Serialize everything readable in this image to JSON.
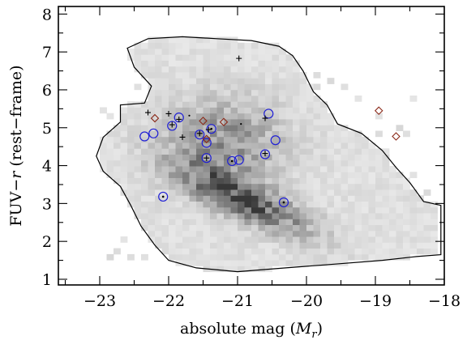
{
  "chart_data": {
    "type": "scatter",
    "title": "",
    "xlabel": "absolute mag (M_r)",
    "xlabel_parts": {
      "text": "absolute mag (",
      "symbol": "M",
      "subscript": "r",
      "close": ")"
    },
    "ylabel": "FUV−r (rest−frame)",
    "ylabel_parts": {
      "prefix": "FUV−",
      "symbol": "r",
      "suffix": " (rest−frame)"
    },
    "xlim": [
      -23.6,
      -18.0
    ],
    "ylim": [
      0.85,
      8.2
    ],
    "x_ticks": [
      -23,
      -22,
      -21,
      -20,
      -19,
      -18
    ],
    "x_tick_labels": [
      "−23",
      "−22",
      "−21",
      "−20",
      "−19",
      "−18"
    ],
    "y_ticks": [
      1,
      2,
      3,
      4,
      5,
      6,
      7,
      8
    ],
    "y_tick_labels": [
      "1",
      "2",
      "3",
      "4",
      "5",
      "6",
      "7",
      "8"
    ],
    "grid": false,
    "background_density": {
      "description_type": "2d-histogram",
      "colormap": "grayscale",
      "outline_contour": [
        [
          -22.6,
          7.1
        ],
        [
          -22.3,
          7.35
        ],
        [
          -21.8,
          7.4
        ],
        [
          -21.3,
          7.35
        ],
        [
          -20.8,
          7.3
        ],
        [
          -20.4,
          7.15
        ],
        [
          -20.2,
          6.9
        ],
        [
          -20.05,
          6.5
        ],
        [
          -19.9,
          5.95
        ],
        [
          -19.7,
          5.6
        ],
        [
          -19.55,
          5.1
        ],
        [
          -19.2,
          4.85
        ],
        [
          -18.9,
          4.4
        ],
        [
          -18.7,
          3.95
        ],
        [
          -18.5,
          3.55
        ],
        [
          -18.3,
          3.05
        ],
        [
          -18.05,
          2.95
        ],
        [
          -18.05,
          1.65
        ],
        [
          -18.4,
          1.6
        ],
        [
          -18.9,
          1.5
        ],
        [
          -19.6,
          1.4
        ],
        [
          -20.3,
          1.3
        ],
        [
          -21.0,
          1.2
        ],
        [
          -21.6,
          1.3
        ],
        [
          -22.0,
          1.5
        ],
        [
          -22.2,
          1.9
        ],
        [
          -22.4,
          2.4
        ],
        [
          -22.55,
          2.95
        ],
        [
          -22.7,
          3.45
        ],
        [
          -22.95,
          3.85
        ],
        [
          -23.05,
          4.25
        ],
        [
          -22.95,
          4.75
        ],
        [
          -22.7,
          5.15
        ],
        [
          -22.7,
          5.6
        ],
        [
          -22.35,
          5.65
        ],
        [
          -22.25,
          6.1
        ],
        [
          -22.5,
          6.6
        ],
        [
          -22.6,
          7.1
        ]
      ],
      "high_density_region": [
        [
          -21.5,
          2.0
        ],
        [
          -20.2,
          3.6
        ]
      ]
    },
    "series": [
      {
        "marker": "open-circle",
        "color": "#1f1fd6",
        "points": [
          [
            -22.35,
            4.77
          ],
          [
            -22.22,
            4.85
          ],
          [
            -21.95,
            5.05
          ],
          [
            -21.85,
            5.27
          ],
          [
            -21.55,
            4.82
          ],
          [
            -21.45,
            4.6
          ],
          [
            -21.38,
            4.97
          ],
          [
            -21.45,
            4.2
          ],
          [
            -21.08,
            4.12
          ],
          [
            -20.98,
            4.15
          ],
          [
            -20.55,
            5.37
          ],
          [
            -20.6,
            4.3
          ],
          [
            -20.45,
            4.67
          ],
          [
            -20.33,
            3.03
          ],
          [
            -22.08,
            3.18
          ]
        ],
        "inner_dots": [
          [
            -22.08,
            3.18
          ],
          [
            -21.38,
            4.97
          ],
          [
            -21.08,
            4.12
          ],
          [
            -20.33,
            3.03
          ]
        ]
      },
      {
        "marker": "open-diamond",
        "color": "#8b2a1a",
        "points": [
          [
            -22.2,
            5.25
          ],
          [
            -21.5,
            5.18
          ],
          [
            -21.2,
            5.15
          ],
          [
            -21.45,
            4.7
          ],
          [
            -18.95,
            5.45
          ],
          [
            -18.7,
            4.77
          ]
        ]
      },
      {
        "marker": "plus",
        "color": "#000000",
        "points": [
          [
            -22.3,
            5.4
          ],
          [
            -22.0,
            5.37
          ],
          [
            -21.8,
            4.75
          ],
          [
            -20.98,
            6.83
          ],
          [
            -20.6,
            5.25
          ],
          [
            -21.55,
            4.85
          ],
          [
            -21.42,
            4.95
          ],
          [
            -21.45,
            4.2
          ],
          [
            -20.6,
            4.32
          ],
          [
            -21.95,
            5.08
          ],
          [
            -21.85,
            5.22
          ]
        ]
      },
      {
        "marker": "dot",
        "color": "#000000",
        "points": [
          [
            -21.7,
            5.32
          ],
          [
            -20.95,
            5.1
          ]
        ]
      }
    ]
  }
}
